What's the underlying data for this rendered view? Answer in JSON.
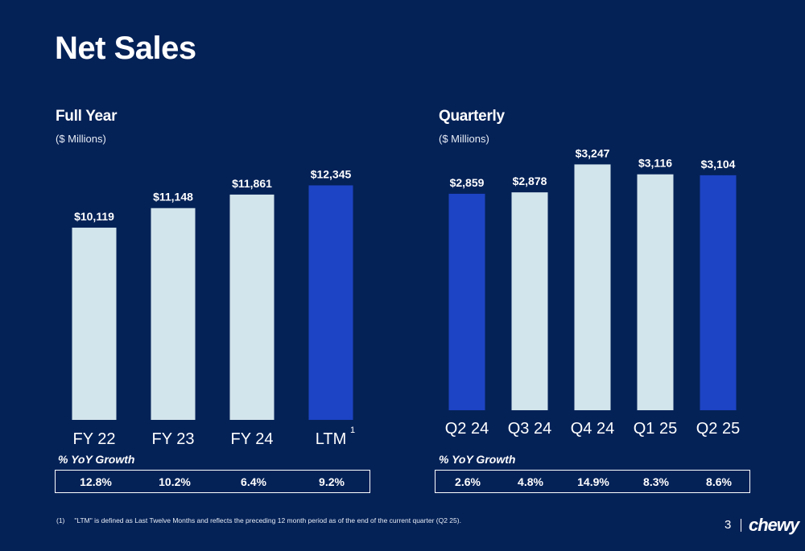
{
  "title": "Net Sales",
  "full_year": {
    "title": "Full Year",
    "subtitle": "($ Millions)",
    "yoy_label": "% YoY Growth",
    "yoy": [
      "12.8%",
      "10.2%",
      "6.4%",
      "9.2%"
    ]
  },
  "quarterly": {
    "title": "Quarterly",
    "subtitle": "($ Millions)",
    "yoy_label": "% YoY Growth",
    "yoy": [
      "2.6%",
      "4.8%",
      "14.9%",
      "8.3%",
      "8.6%"
    ]
  },
  "chart_data": [
    {
      "type": "bar",
      "title": "Full Year",
      "subtitle": "($ Millions)",
      "categories": [
        "FY 22",
        "FY 23",
        "FY 24",
        "LTM"
      ],
      "category_superscripts": [
        "",
        "",
        "",
        "1"
      ],
      "values": [
        10119,
        11148,
        11861,
        12345
      ],
      "value_labels": [
        "$10,119",
        "$11,148",
        "$11,861",
        "$12,345"
      ],
      "highlight": [
        false,
        false,
        false,
        true
      ],
      "ylim": [
        0,
        13000
      ],
      "grid": false
    },
    {
      "type": "bar",
      "title": "Quarterly",
      "subtitle": "($ Millions)",
      "categories": [
        "Q2 24",
        "Q3 24",
        "Q4 24",
        "Q1 25",
        "Q2 25"
      ],
      "values": [
        2859,
        2878,
        3247,
        3116,
        3104
      ],
      "value_labels": [
        "$2,859",
        "$2,878",
        "$3,247",
        "$3,116",
        "$3,104"
      ],
      "highlight": [
        true,
        false,
        false,
        false,
        true
      ],
      "ylim": [
        0,
        3400
      ],
      "grid": false
    }
  ],
  "colors": {
    "background": "#052257",
    "bar_light": "#d3e5ec",
    "bar_highlight": "#1d44c4",
    "text": "#ffffff"
  },
  "footnote": {
    "number": "(1)",
    "text": "\"LTM\" is defined as Last Twelve Months and reflects the preceding 12 month period as of the end of the current quarter (Q2 25)."
  },
  "page_number": "3",
  "logo_text": "chewy"
}
